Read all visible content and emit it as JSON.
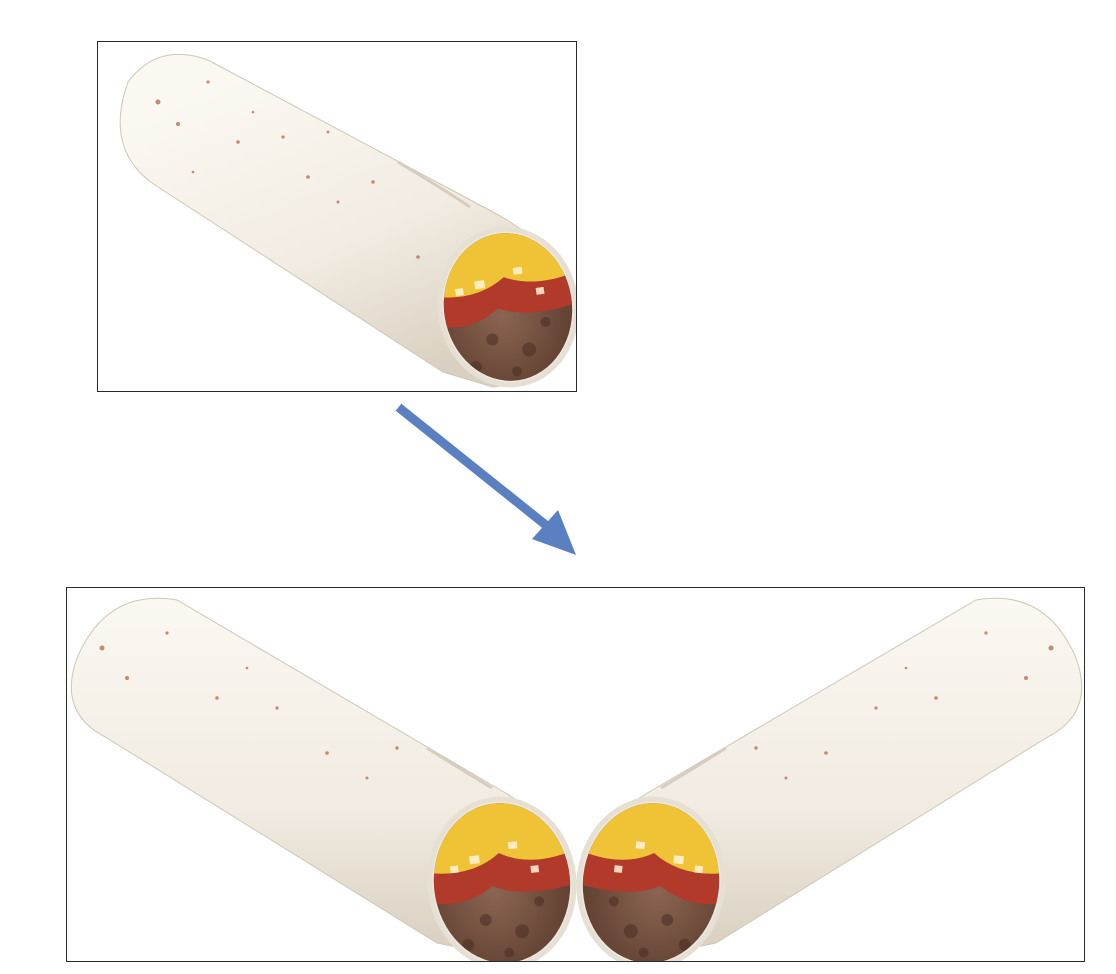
{
  "diagram": {
    "top_panel": {
      "subject": "burrito-single"
    },
    "bottom_panel": {
      "subject": "burrito-mirrored-pair"
    },
    "arrow": {
      "direction": "down-right",
      "color": "#5b80c1"
    }
  },
  "colors": {
    "tortilla": "#f4f0e8",
    "tortilla_shadow": "#ddd5c6",
    "cheese": "#f0c236",
    "meat": "#7a5443",
    "sauce": "#b23a2a",
    "frame": "#2a2a2a"
  }
}
